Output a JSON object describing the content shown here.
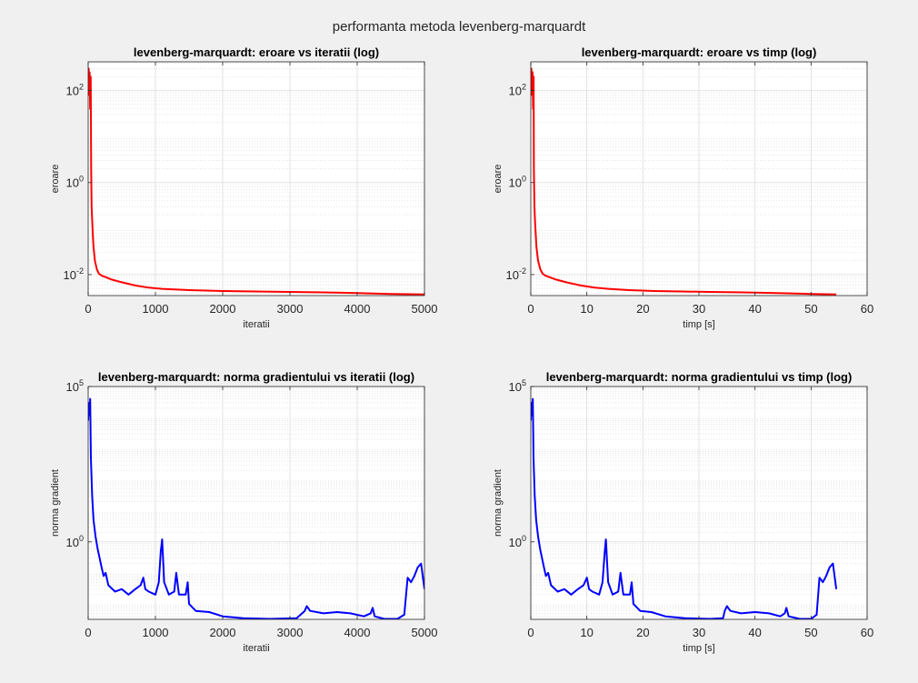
{
  "figure_title": "performanta metoda levenberg-marquardt",
  "chart_data": [
    {
      "type": "line",
      "title": "levenberg-marquardt: eroare vs iteratii (log)",
      "xlabel": "iteratii",
      "ylabel": "eroare",
      "xscale": "linear",
      "yscale": "log",
      "xlim": [
        0,
        5000
      ],
      "ylim": [
        0.0035,
        420
      ],
      "xticks": [
        0,
        1000,
        2000,
        3000,
        4000,
        5000
      ],
      "xtick_labels": [
        "0",
        "1000",
        "2000",
        "3000",
        "4000",
        "5000"
      ],
      "yticks": [
        0.01,
        1,
        100
      ],
      "ytick_labels": [
        {
          "base": "10",
          "exp": "-2"
        },
        {
          "base": "10",
          "exp": "0"
        },
        {
          "base": "10",
          "exp": "2"
        }
      ],
      "grid": true,
      "color": "#ff0000",
      "series": [
        {
          "x": [
            0,
            8,
            15,
            22,
            30,
            38,
            45,
            52,
            60,
            70,
            80,
            100,
            130,
            160,
            200,
            260,
            350,
            500,
            700,
            900,
            1100,
            1500,
            2000,
            2500,
            3000,
            3500,
            4000,
            4500,
            5000
          ],
          "y": [
            150,
            300,
            80,
            250,
            40,
            200,
            2,
            0.3,
            0.15,
            0.07,
            0.04,
            0.02,
            0.013,
            0.0105,
            0.0095,
            0.0088,
            0.0078,
            0.0068,
            0.0058,
            0.0052,
            0.0049,
            0.0046,
            0.0044,
            0.0043,
            0.0042,
            0.0041,
            0.00395,
            0.0038,
            0.0037
          ]
        }
      ]
    },
    {
      "type": "line",
      "title": "levenberg-marquardt: eroare vs timp (log)",
      "xlabel": "timp [s]",
      "ylabel": "eroare",
      "xscale": "linear",
      "yscale": "log",
      "xlim": [
        0,
        60
      ],
      "ylim": [
        0.0035,
        420
      ],
      "xticks": [
        0,
        10,
        20,
        30,
        40,
        50,
        60
      ],
      "xtick_labels": [
        "0",
        "10",
        "20",
        "30",
        "40",
        "50",
        "60"
      ],
      "yticks": [
        0.01,
        1,
        100
      ],
      "ytick_labels": [
        {
          "base": "10",
          "exp": "-2"
        },
        {
          "base": "10",
          "exp": "0"
        },
        {
          "base": "10",
          "exp": "2"
        }
      ],
      "grid": true,
      "color": "#ff0000",
      "series": [
        {
          "x": [
            0,
            0.1,
            0.2,
            0.3,
            0.4,
            0.5,
            0.55,
            0.65,
            0.75,
            0.9,
            1.0,
            1.3,
            1.7,
            2.1,
            2.6,
            3.3,
            4.5,
            6.3,
            8.9,
            11.4,
            13.9,
            17.5,
            22,
            27,
            32,
            38,
            44,
            50,
            54.5
          ],
          "y": [
            150,
            300,
            80,
            250,
            40,
            200,
            2,
            0.3,
            0.15,
            0.07,
            0.04,
            0.02,
            0.013,
            0.0105,
            0.0095,
            0.0088,
            0.0078,
            0.0068,
            0.0058,
            0.0052,
            0.0049,
            0.0046,
            0.0044,
            0.0043,
            0.0042,
            0.0041,
            0.00395,
            0.0038,
            0.0037
          ]
        }
      ]
    },
    {
      "type": "line",
      "title": "levenberg-marquardt: norma gradientului vs iteratii (log)",
      "xlabel": "iteratii",
      "ylabel": "norma gradient",
      "xscale": "linear",
      "yscale": "log",
      "xlim": [
        0,
        5000
      ],
      "ylim": [
        0.0032,
        100000
      ],
      "xticks": [
        0,
        1000,
        2000,
        3000,
        4000,
        5000
      ],
      "xtick_labels": [
        "0",
        "1000",
        "2000",
        "3000",
        "4000",
        "5000"
      ],
      "yticks": [
        1,
        100000
      ],
      "ytick_labels": [
        {
          "base": "10",
          "exp": "0"
        },
        {
          "base": "10",
          "exp": "5"
        }
      ],
      "grid": true,
      "color": "#0000ff",
      "series": [
        {
          "x": [
            0,
            10,
            20,
            30,
            40,
            60,
            80,
            110,
            140,
            170,
            200,
            230,
            260,
            300,
            400,
            500,
            600,
            700,
            780,
            820,
            850,
            900,
            1000,
            1050,
            1080,
            1100,
            1130,
            1200,
            1280,
            1310,
            1350,
            1450,
            1480,
            1500,
            1600,
            1800,
            2000,
            2300,
            2700,
            3100,
            3220,
            3250,
            3300,
            3500,
            3700,
            3900,
            4100,
            4200,
            4230,
            4260,
            4400,
            4600,
            4700,
            4750,
            4800,
            4850,
            4900,
            4950,
            5000
          ],
          "y": [
            8000,
            30000,
            12000,
            40000,
            500,
            30,
            5,
            1.5,
            0.6,
            0.3,
            0.15,
            0.08,
            0.1,
            0.04,
            0.025,
            0.03,
            0.02,
            0.03,
            0.04,
            0.07,
            0.03,
            0.025,
            0.02,
            0.05,
            0.5,
            1.2,
            0.05,
            0.02,
            0.025,
            0.1,
            0.02,
            0.02,
            0.05,
            0.01,
            0.006,
            0.0055,
            0.004,
            0.0035,
            0.0033,
            0.0035,
            0.006,
            0.0085,
            0.006,
            0.005,
            0.0055,
            0.005,
            0.004,
            0.005,
            0.0075,
            0.004,
            0.0033,
            0.0033,
            0.0045,
            0.07,
            0.05,
            0.08,
            0.15,
            0.2,
            0.03
          ]
        }
      ]
    },
    {
      "type": "line",
      "title": "levenberg-marquardt: norma gradientului vs timp (log)",
      "xlabel": "timp [s]",
      "ylabel": "norma gradient",
      "xscale": "linear",
      "yscale": "log",
      "xlim": [
        0,
        60
      ],
      "ylim": [
        0.0032,
        100000
      ],
      "xticks": [
        0,
        10,
        20,
        30,
        40,
        50,
        60
      ],
      "xtick_labels": [
        "0",
        "10",
        "20",
        "30",
        "40",
        "50",
        "60"
      ],
      "yticks": [
        1,
        100000
      ],
      "ytick_labels": [
        {
          "base": "10",
          "exp": "0"
        },
        {
          "base": "10",
          "exp": "5"
        }
      ],
      "grid": true,
      "color": "#0000ff",
      "series": [
        {
          "x": [
            0,
            0.12,
            0.24,
            0.36,
            0.48,
            0.7,
            0.95,
            1.3,
            1.65,
            2.0,
            2.35,
            2.7,
            3.1,
            3.6,
            4.8,
            6.0,
            7.2,
            8.4,
            9.4,
            10.0,
            10.4,
            11.0,
            12.2,
            12.8,
            13.2,
            13.4,
            13.8,
            14.6,
            15.6,
            16.0,
            16.5,
            17.7,
            18.0,
            18.3,
            19.5,
            21.5,
            24,
            27.5,
            32,
            34.3,
            34.6,
            35.0,
            35.6,
            37.5,
            40,
            42.5,
            44.5,
            45.3,
            45.6,
            46.0,
            48,
            50,
            51,
            51.5,
            52.1,
            52.7,
            53.3,
            53.9,
            54.5
          ],
          "y": [
            8000,
            30000,
            12000,
            40000,
            500,
            30,
            5,
            1.5,
            0.6,
            0.3,
            0.15,
            0.08,
            0.1,
            0.04,
            0.025,
            0.03,
            0.02,
            0.03,
            0.04,
            0.07,
            0.03,
            0.025,
            0.02,
            0.05,
            0.5,
            1.2,
            0.05,
            0.02,
            0.025,
            0.1,
            0.02,
            0.02,
            0.05,
            0.01,
            0.006,
            0.0055,
            0.004,
            0.0035,
            0.0033,
            0.0035,
            0.006,
            0.0085,
            0.006,
            0.005,
            0.0055,
            0.005,
            0.004,
            0.005,
            0.0075,
            0.004,
            0.0033,
            0.0033,
            0.0045,
            0.07,
            0.05,
            0.08,
            0.15,
            0.2,
            0.03
          ]
        }
      ]
    }
  ]
}
